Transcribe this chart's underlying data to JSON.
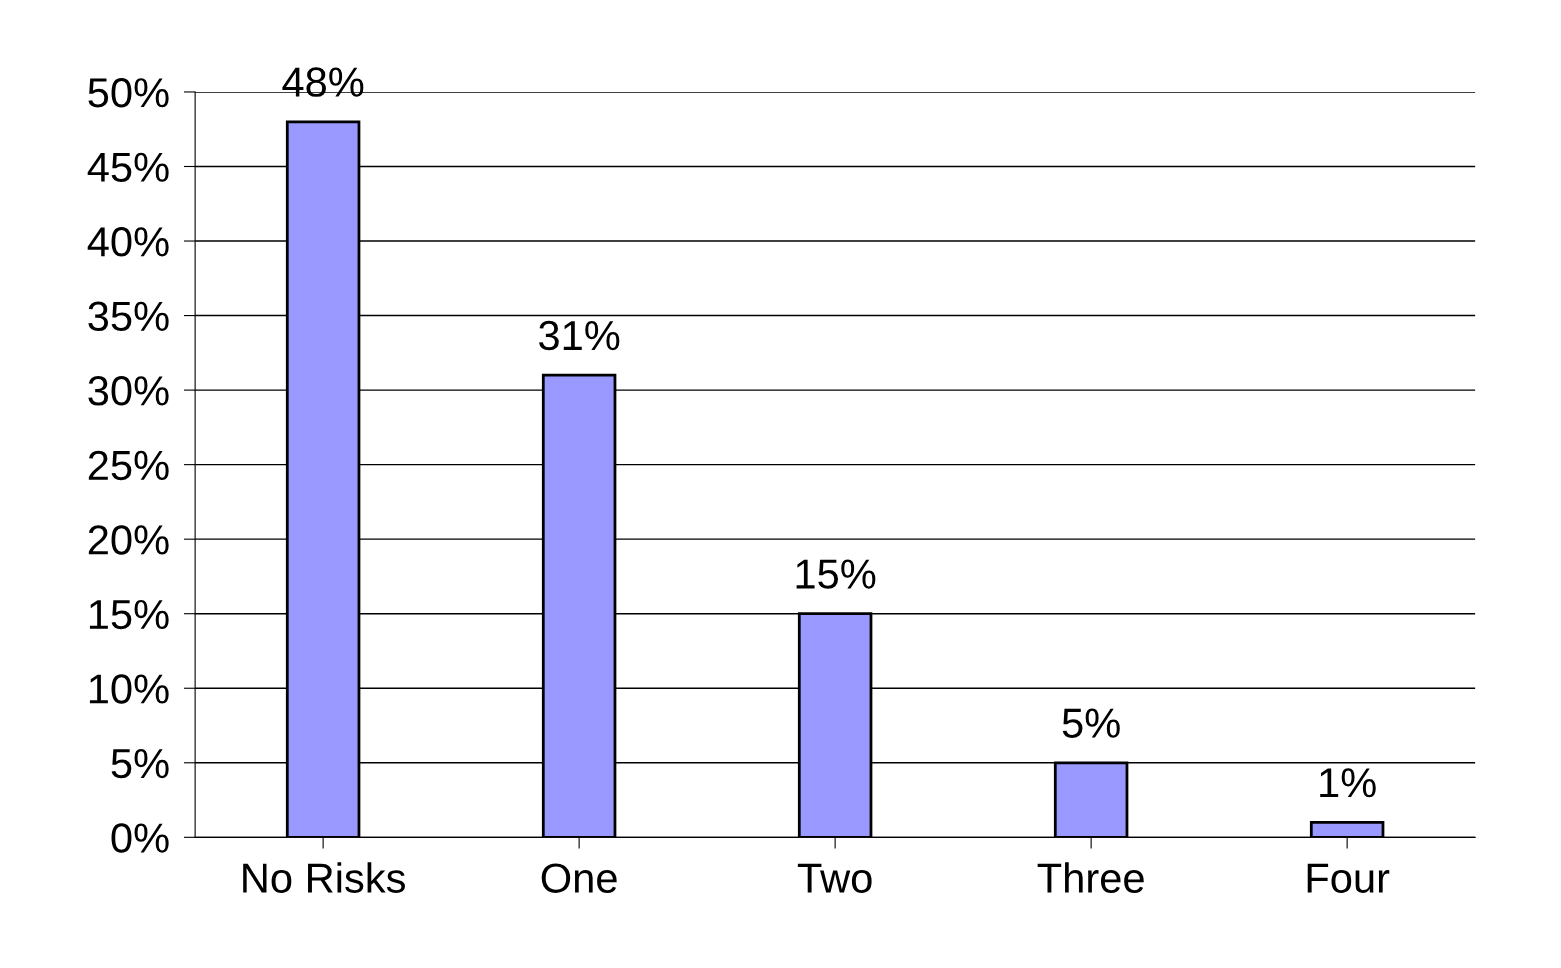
{
  "chart_data": {
    "type": "bar",
    "categories": [
      "No Risks",
      "One",
      "Two",
      "Three",
      "Four"
    ],
    "values": [
      48,
      31,
      15,
      5,
      1
    ],
    "value_labels": [
      "48%",
      "31%",
      "15%",
      "5%",
      "1%"
    ],
    "color": "#9999ff",
    "ylim": [
      0,
      50
    ],
    "yticks": [
      {
        "value": 0,
        "label": "0%"
      },
      {
        "value": 5,
        "label": "5%"
      },
      {
        "value": 10,
        "label": "10%"
      },
      {
        "value": 15,
        "label": "15%"
      },
      {
        "value": 20,
        "label": "20%"
      },
      {
        "value": 25,
        "label": "25%"
      },
      {
        "value": 30,
        "label": "30%"
      },
      {
        "value": 35,
        "label": "35%"
      },
      {
        "value": 40,
        "label": "40%"
      },
      {
        "value": 45,
        "label": "45%"
      },
      {
        "value": 50,
        "label": "50%"
      }
    ],
    "grid": "y"
  }
}
